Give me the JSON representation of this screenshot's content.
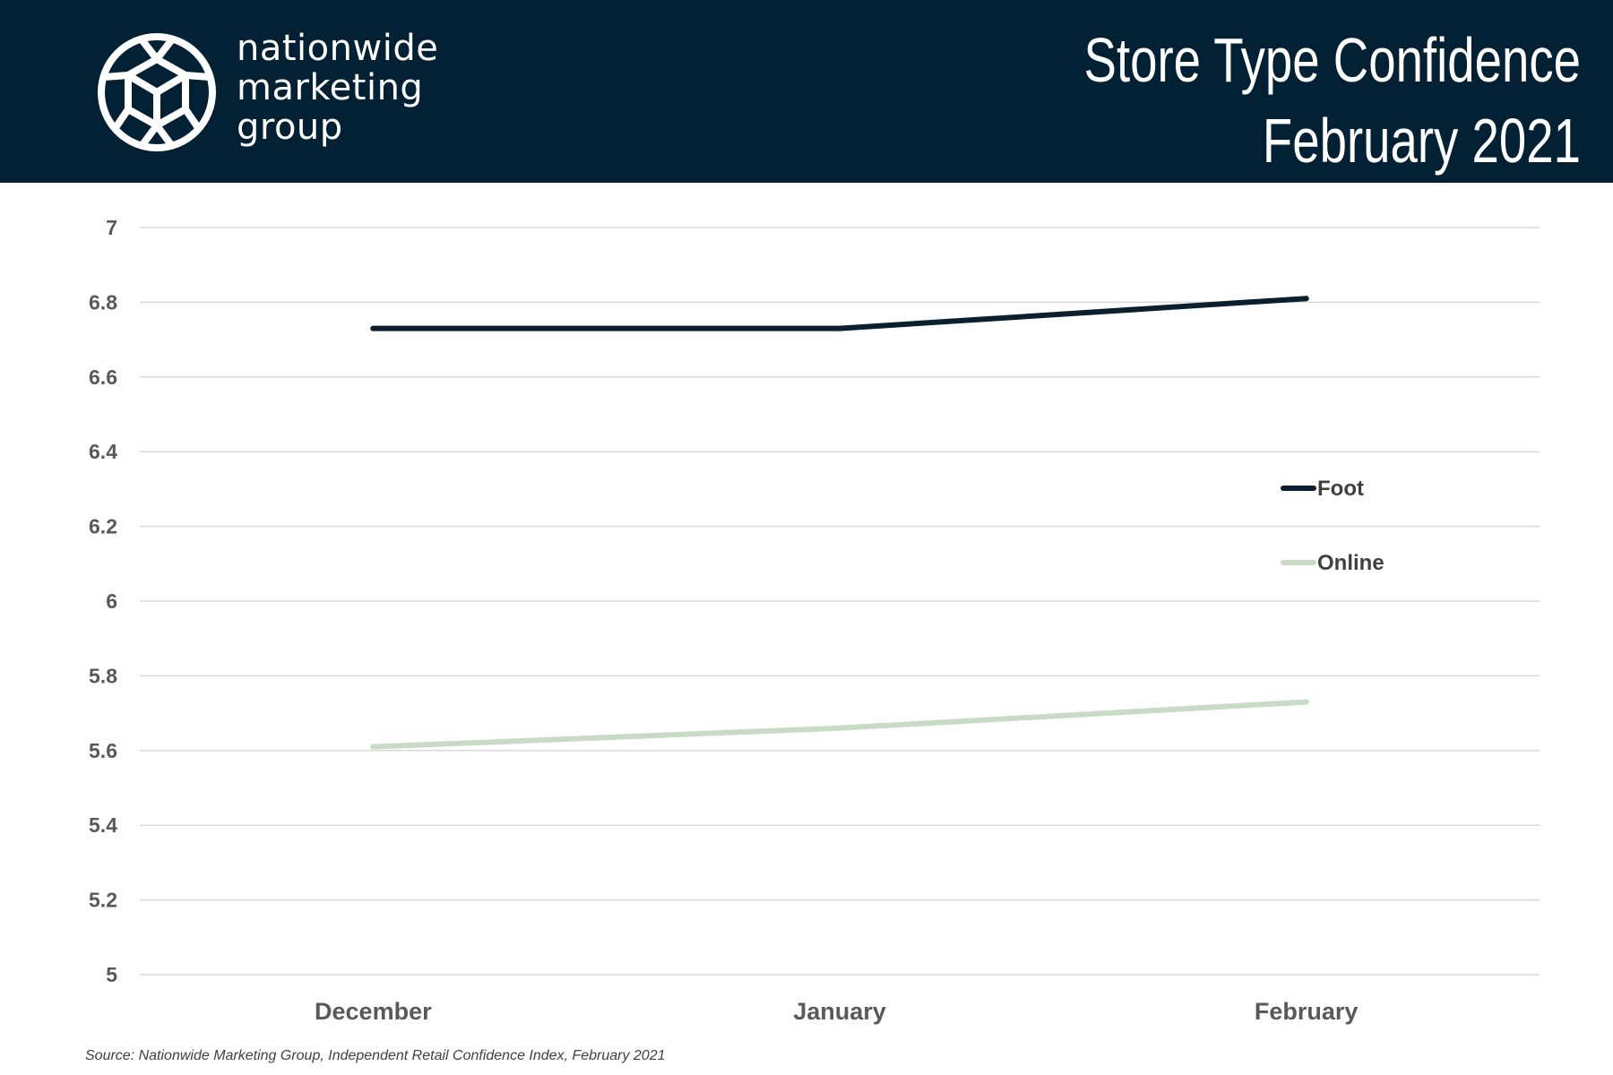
{
  "header": {
    "brand_lines": [
      "nationwide",
      "marketing",
      "group"
    ],
    "title_lines": [
      "Store Type Confidence",
      "February 2021"
    ],
    "background": "#032134"
  },
  "chart_data": {
    "type": "line",
    "categories": [
      "December",
      "January",
      "February"
    ],
    "series": [
      {
        "name": "Foot",
        "values": [
          6.73,
          6.73,
          6.81
        ],
        "color": "#0B1F2E"
      },
      {
        "name": "Online",
        "values": [
          5.61,
          5.66,
          5.73
        ],
        "color": "#C8DCC5"
      }
    ],
    "ylim": [
      5,
      7
    ],
    "yticks": [
      "5",
      "5.2",
      "5.4",
      "5.6",
      "5.8",
      "6",
      "6.2",
      "6.4",
      "6.6",
      "6.8",
      "7"
    ],
    "grid": true,
    "legend_position": "right"
  },
  "source": "Source: Nationwide Marketing Group, Independent Retail Confidence Index, February 2021"
}
